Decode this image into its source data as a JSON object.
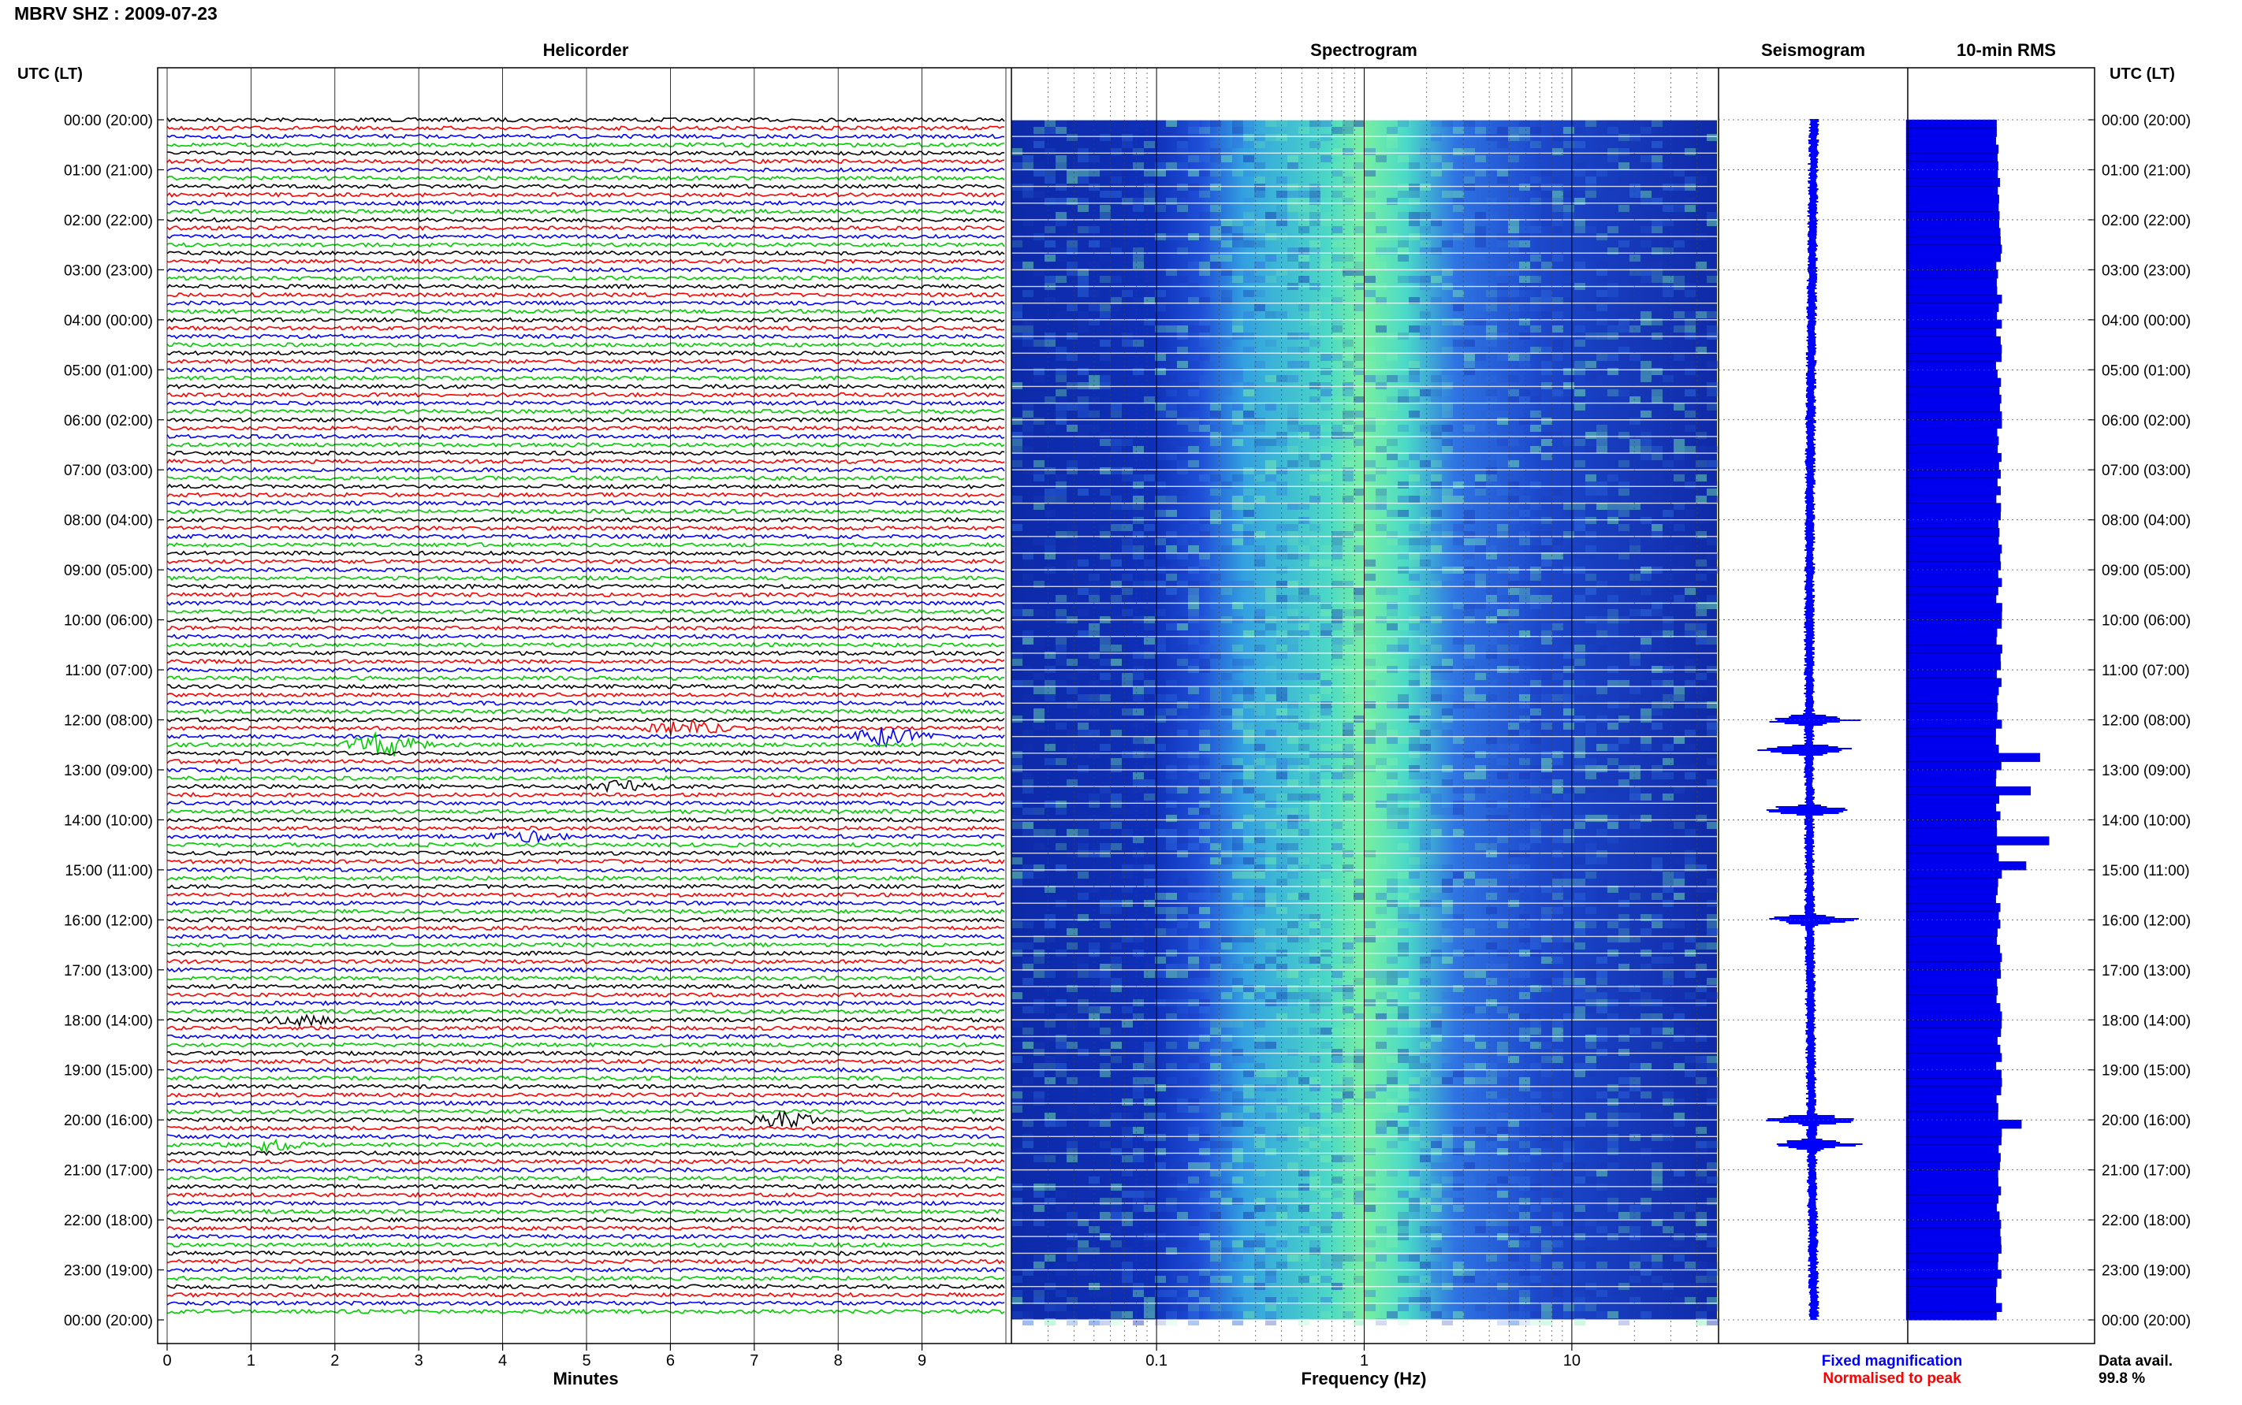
{
  "header": {
    "station_title": "MBRV SHZ : 2009-07-23",
    "utc_label_left": "UTC (LT)",
    "utc_label_right": "UTC (LT)"
  },
  "panels": {
    "helicorder": "Helicorder",
    "spectrogram": "Spectrogram",
    "seismogram": "Seismogram",
    "rms": "10-min RMS"
  },
  "footer": {
    "fixed_magnification": "Fixed magnification",
    "normalised_to_peak": "Normalised to peak",
    "data_avail_label": "Data avail.",
    "data_avail_value": "99.8 %"
  },
  "colors": {
    "trace_cycle": [
      "#000000",
      "#ff0000",
      "#0000ff",
      "#00cc00"
    ],
    "spectrogram_low": "#0a1ea0",
    "spectrogram_high": "#6cf2a2",
    "seismogram": "#0000ff",
    "rms_bar": "#0000ee",
    "fixed_magnification_text": "#0000ff",
    "normalised_text": "#ff0000"
  },
  "chart_data": [
    {
      "type": "line",
      "panel": "Helicorder",
      "xlabel": "Minutes",
      "x_ticks": [
        "0",
        "1",
        "2",
        "3",
        "4",
        "5",
        "6",
        "7",
        "8",
        "9"
      ],
      "xlim": [
        0,
        10
      ],
      "traces_per_day": 144,
      "trace_minutes": 10,
      "y_tick_labels": [
        "00:00 (20:00)",
        "01:00 (21:00)",
        "02:00 (22:00)",
        "03:00 (23:00)",
        "04:00 (00:00)",
        "05:00 (01:00)",
        "06:00 (02:00)",
        "07:00 (03:00)",
        "08:00 (04:00)",
        "09:00 (05:00)",
        "10:00 (06:00)",
        "11:00 (07:00)",
        "12:00 (08:00)",
        "13:00 (09:00)",
        "14:00 (10:00)",
        "15:00 (11:00)",
        "16:00 (12:00)",
        "17:00 (13:00)",
        "18:00 (14:00)",
        "19:00 (15:00)",
        "20:00 (16:00)",
        "21:00 (17:00)",
        "22:00 (18:00)",
        "23:00 (19:00)",
        "00:00 (20:00)"
      ],
      "events": [
        {
          "hour": 12.1,
          "minute": 6.2,
          "amplitude": 3
        },
        {
          "hour": 12.35,
          "minute": 8.6,
          "amplitude": 4
        },
        {
          "hour": 12.5,
          "minute": 2.6,
          "amplitude": 5
        },
        {
          "hour": 13.4,
          "minute": 5.4,
          "amplitude": 2
        },
        {
          "hour": 14.3,
          "minute": 4.3,
          "amplitude": 2
        },
        {
          "hour": 18.0,
          "minute": 1.6,
          "amplitude": 2
        },
        {
          "hour": 20.0,
          "minute": 7.3,
          "amplitude": 3
        },
        {
          "hour": 20.5,
          "minute": 1.2,
          "amplitude": 2
        }
      ]
    },
    {
      "type": "heatmap",
      "panel": "Spectrogram",
      "xlabel": "Frequency (Hz)",
      "x_scale": "log",
      "x_tick_labels": [
        "0.1",
        "1",
        "10"
      ],
      "xlim": [
        0.02,
        50
      ],
      "peak_band_hz": [
        0.4,
        2.5
      ]
    },
    {
      "type": "line",
      "panel": "Seismogram",
      "events_hour": [
        12.0,
        12.6,
        13.8,
        16.0,
        20.0,
        20.5
      ]
    },
    {
      "type": "bar",
      "panel": "10-min RMS",
      "baseline": 1.0,
      "peaks": [
        {
          "hour": 12.6,
          "value": 1.45
        },
        {
          "hour": 13.4,
          "value": 1.35
        },
        {
          "hour": 14.3,
          "value": 1.55
        },
        {
          "hour": 14.9,
          "value": 1.3
        },
        {
          "hour": 20.0,
          "value": 1.25
        }
      ]
    }
  ]
}
